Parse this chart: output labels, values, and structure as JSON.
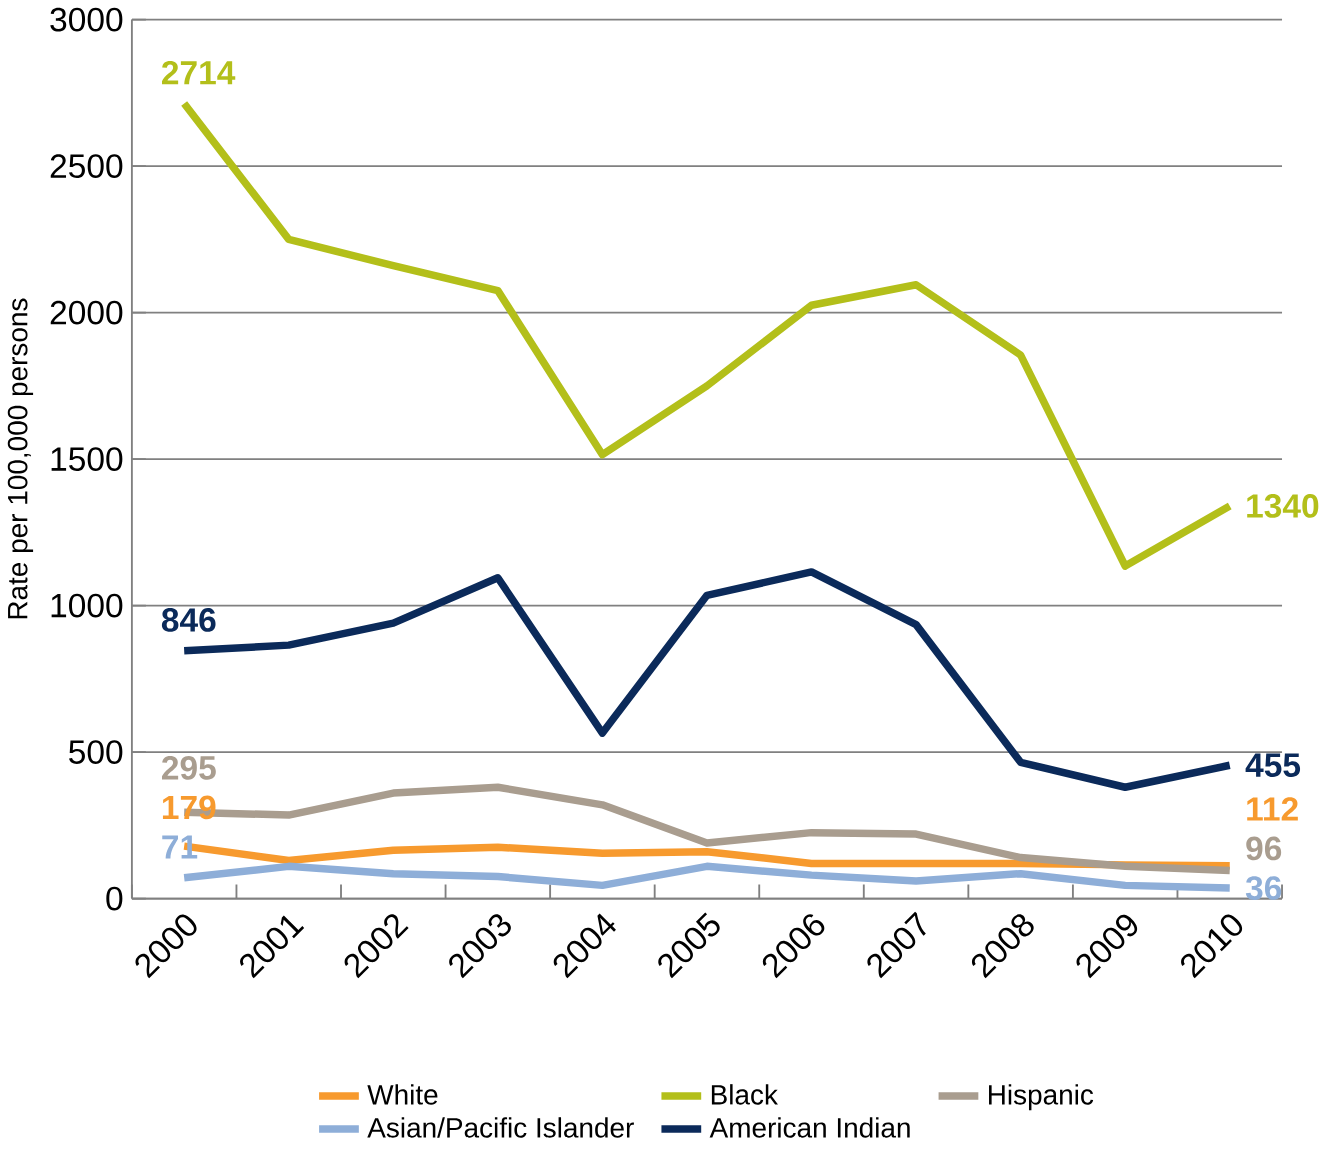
{
  "chart_data": {
    "type": "line",
    "ylabel": "Rate per 100,000 persons",
    "categories": [
      "2000",
      "2001",
      "2002",
      "2003",
      "2004",
      "2005",
      "2006",
      "2007",
      "2008",
      "2009",
      "2010"
    ],
    "series": [
      {
        "name": "White",
        "color": "#f79a2e",
        "values": [
          179,
          130,
          165,
          175,
          155,
          160,
          120,
          120,
          120,
          115,
          112
        ],
        "value_labels": [
          "179",
          null,
          null,
          null,
          null,
          null,
          null,
          null,
          null,
          null,
          "112"
        ]
      },
      {
        "name": "Black",
        "color": "#b3bf1a",
        "values": [
          2714,
          2250,
          2160,
          2075,
          1515,
          1750,
          2025,
          2095,
          1855,
          1135,
          1340
        ],
        "value_labels": [
          "2714",
          null,
          null,
          null,
          null,
          null,
          null,
          null,
          null,
          null,
          "1340"
        ]
      },
      {
        "name": "Hispanic",
        "color": "#a99d8f",
        "values": [
          295,
          285,
          360,
          380,
          320,
          190,
          225,
          220,
          140,
          110,
          96
        ],
        "value_labels": [
          "295",
          null,
          null,
          null,
          null,
          null,
          null,
          null,
          null,
          null,
          "96"
        ]
      },
      {
        "name": "Asian/Pacific Islander",
        "color": "#8eaed8",
        "values": [
          71,
          110,
          85,
          75,
          45,
          110,
          80,
          60,
          85,
          45,
          36
        ],
        "value_labels": [
          "71",
          null,
          null,
          null,
          null,
          null,
          null,
          null,
          null,
          null,
          "36"
        ]
      },
      {
        "name": "American Indian",
        "color": "#0b2a5a",
        "values": [
          846,
          865,
          940,
          1095,
          565,
          1035,
          1115,
          935,
          465,
          380,
          455
        ],
        "value_labels": [
          "846",
          null,
          null,
          null,
          null,
          null,
          null,
          null,
          null,
          null,
          "455"
        ]
      }
    ],
    "ylim": [
      0,
      3000
    ],
    "yticks": [
      0,
      500,
      1000,
      1500,
      2000,
      2500,
      3000
    ],
    "grid": "y",
    "legend": "bottom",
    "marker": "none",
    "line_style": "solid"
  }
}
